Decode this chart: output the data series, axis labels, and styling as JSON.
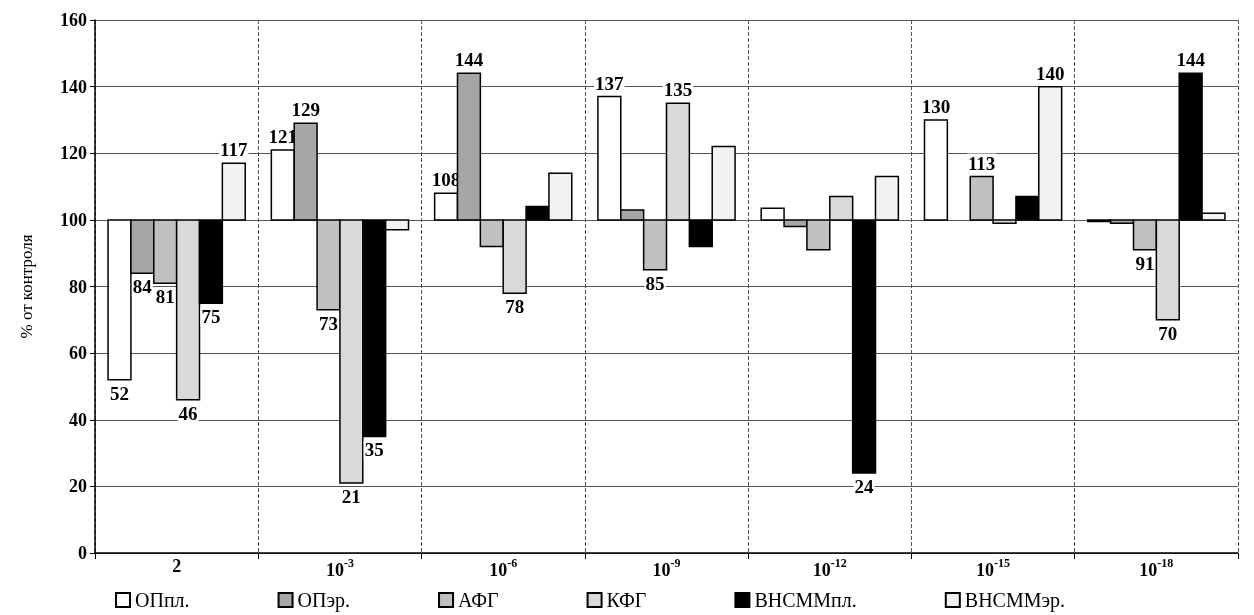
{
  "chart_data": {
    "type": "bar",
    "ylabel": "% от контроля",
    "categories": [
      "2",
      "10$^{-3}$",
      "10$^{-6}$",
      "10$^{-9}$",
      "10$^{-12}$",
      "10$^{-15}$",
      "10$^{-18}$"
    ],
    "ylim": [
      0,
      160
    ],
    "yticks": [
      0,
      20,
      40,
      60,
      80,
      100,
      120,
      140,
      160
    ],
    "grid": true,
    "legend": "bottom",
    "series": [
      {
        "name": "ОПпл.",
        "color": "#ffffff",
        "base": [
          100,
          100,
          100,
          100,
          100,
          100,
          100
        ],
        "values": [
          -48,
          21,
          8,
          37,
          3.5,
          30,
          -0.5
        ],
        "value_labels": [
          "52",
          "121",
          "108",
          "137",
          null,
          "130",
          null
        ]
      },
      {
        "name": "ОПэр.",
        "color": "#a6a6a6",
        "base": [
          100,
          100,
          100,
          100,
          100,
          null,
          100
        ],
        "values": [
          -16,
          29,
          44,
          3,
          -2,
          null,
          -1
        ],
        "value_labels": [
          "84",
          "129",
          "144",
          null,
          null,
          null,
          null
        ]
      },
      {
        "name": "АФГ",
        "color": "#c0c0c0",
        "base": [
          100,
          100,
          100,
          100,
          100,
          100,
          100
        ],
        "values": [
          -19,
          -27,
          -8,
          -15,
          -9,
          13,
          -9
        ],
        "value_labels": [
          "81",
          "73",
          null,
          "85",
          null,
          "113",
          "91"
        ]
      },
      {
        "name": "КФГ",
        "color": "#d9d9d9",
        "base": [
          100,
          100,
          100,
          100,
          100,
          100,
          100
        ],
        "values": [
          -54,
          -79,
          -22,
          35,
          7,
          -1,
          -30
        ],
        "value_labels": [
          "46",
          "21",
          "78",
          "135",
          null,
          null,
          "70"
        ]
      },
      {
        "name": "ВНСММпл.",
        "color": "#000000",
        "base": [
          100,
          100,
          100,
          100,
          100,
          100,
          100
        ],
        "values": [
          -25,
          -65,
          4,
          -8,
          -76,
          7,
          44
        ],
        "value_labels": [
          "75",
          "35",
          null,
          null,
          "24",
          null,
          "144"
        ]
      },
      {
        "name": "ВНСММэр.",
        "color": "#f2f2f2",
        "base": [
          100,
          100,
          100,
          100,
          100,
          100,
          100
        ],
        "values": [
          17,
          -3,
          14,
          22,
          13,
          40,
          2
        ],
        "value_labels": [
          "117",
          null,
          null,
          null,
          null,
          "140",
          null
        ]
      }
    ]
  }
}
